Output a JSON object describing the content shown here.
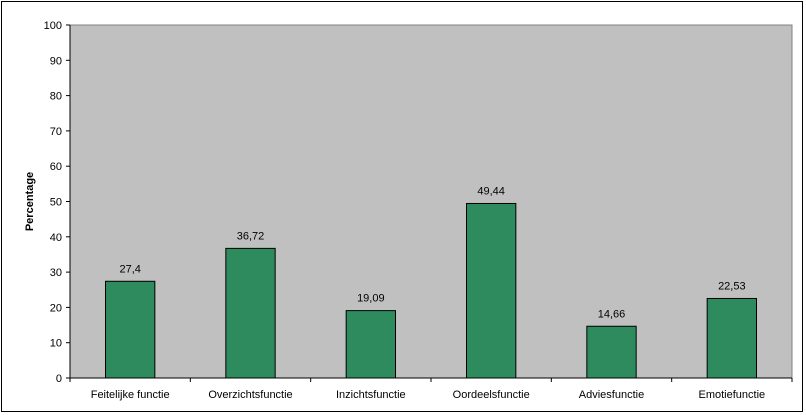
{
  "chart_data": {
    "type": "bar",
    "title": "",
    "xlabel": "",
    "ylabel": "Percentage",
    "ylim": [
      0,
      100
    ],
    "ytick_step": 10,
    "grid": false,
    "categories": [
      "Feitelijke functie",
      "Overzichtsfunctie",
      "Inzichtsfunctie",
      "Oordeelsfunctie",
      "Adviesfunctie",
      "Emotiefunctie"
    ],
    "values": [
      27.4,
      36.72,
      19.09,
      49.44,
      14.66,
      22.53
    ],
    "value_labels": [
      "27,4",
      "36,72",
      "19,09",
      "49,44",
      "14,66",
      "22,53"
    ],
    "colors": {
      "bar": "#2e8b5e",
      "plot_area": "#c0c0c0",
      "bar_outline": "#000000"
    }
  }
}
